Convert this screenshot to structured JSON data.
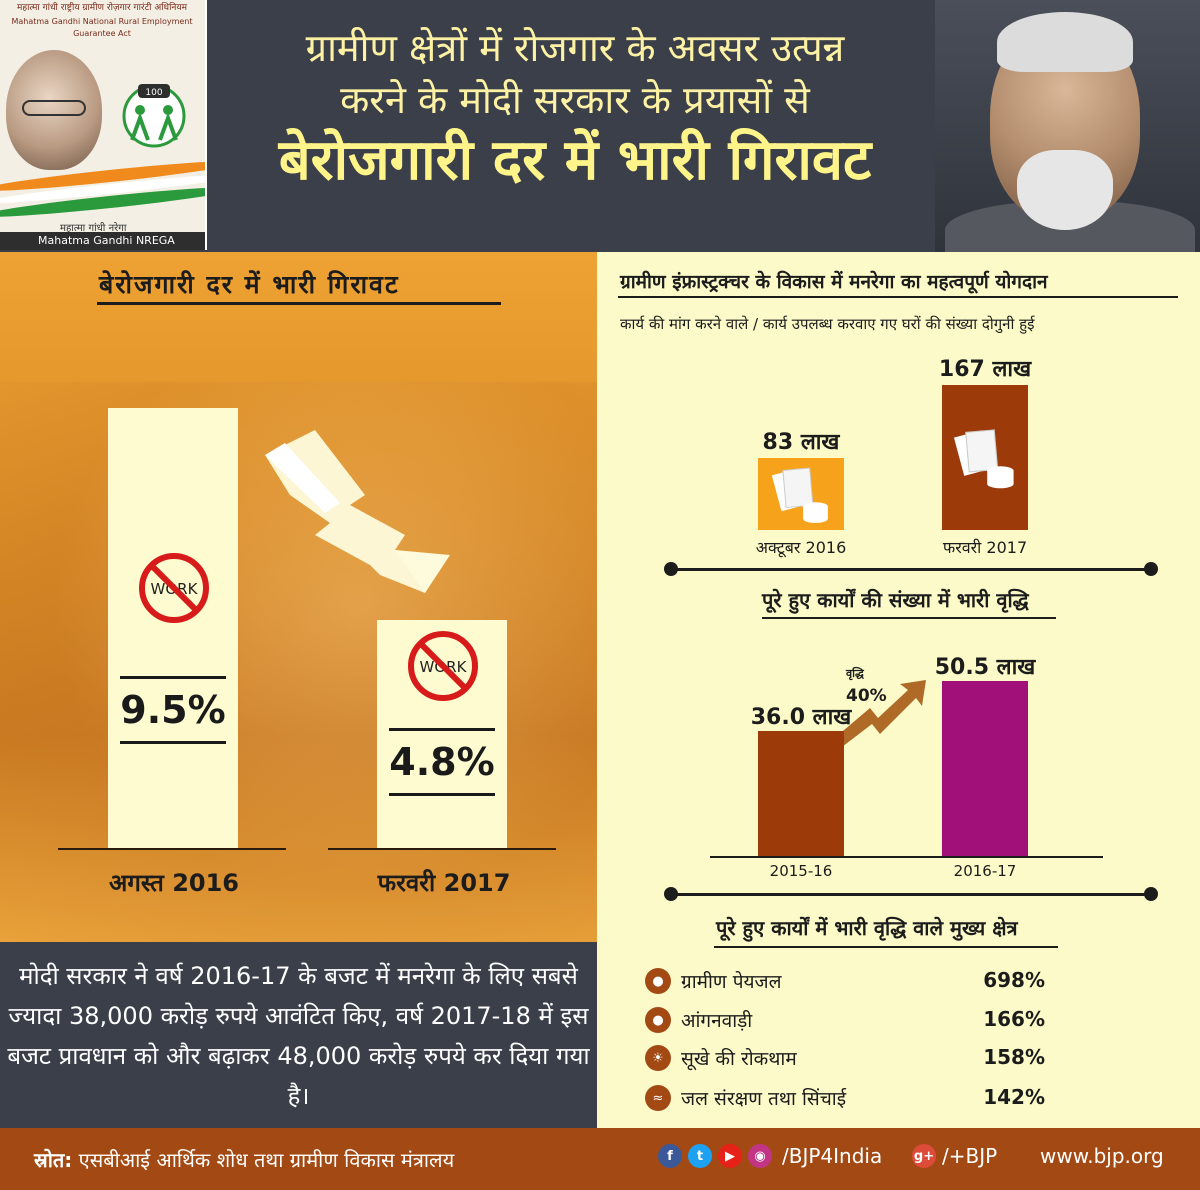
{
  "header": {
    "logo_arc_hi": "महात्मा गांधी राष्ट्रीय ग्रामीण रोज़गार गारंटी अधिनियम",
    "logo_arc_en": "Mahatma Gandhi National Rural Employment Guarantee Act",
    "logo_badge": "100",
    "logo_sub_hi": "महात्मा गांधी नरेगा",
    "logo_sub_en": "Mahatma Gandhi NREGA",
    "headline_line1": "ग्रामीण क्षेत्रों में रोजगार के अवसर उत्पन्न",
    "headline_line2": "करने के मोदी सरकार के प्रयासों से",
    "headline_line3": "बेरोजगारी दर में भारी गिरावट"
  },
  "left": {
    "title": "बेरोजगारी दर में भारी गिरावट",
    "no_work_text": "WORK",
    "note": "मोदी सरकार ने वर्ष 2016-17 के बजट में मनरेगा के लिए सबसे ज्यादा 38,000 करोड़ रुपये आवंटित किए, वर्ष 2017-18 में इस बजट प्रावधान को और बढ़ाकर 48,000 करोड़ रुपये कर दिया गया है।"
  },
  "right": {
    "sec1_title": "ग्रामीण इंफ्रास्ट्रक्चर के विकास में मनरेगा का महत्वपूर्ण योगदान",
    "sec1_subtitle": "कार्य की मांग करने वाले / कार्य उपलब्ध करवाए गए घरों की संख्या दोगुनी हुई",
    "sec2_title": "पूरे हुए कार्यों की संख्या में भारी वृद्धि",
    "growth_label": "वृद्धि",
    "growth_value": "40%",
    "sec3_title": "पूरे हुए कार्यों में भारी वृद्धि वाले मुख्य क्षेत्र"
  },
  "sectors": [
    {
      "icon": "drop-icon",
      "name": "ग्रामीण पेयजल",
      "value": "698%"
    },
    {
      "icon": "anganwadi-icon",
      "name": "आंगनवाड़ी",
      "value": "166%"
    },
    {
      "icon": "sun-icon",
      "name": "सूखे की रोकथाम",
      "value": "158%"
    },
    {
      "icon": "irrigation-icon",
      "name": "जल संरक्षण तथा सिंचाई",
      "value": "142%"
    }
  ],
  "footer": {
    "source_label": "स्रोत:",
    "source_text": "एसबीआई आर्थिक शोध तथा ग्रामीण विकास मंत्रालय",
    "handle": "/BJP4India",
    "gplus": "/+BJP",
    "website": "www.bjp.org"
  },
  "colors": {
    "accent_orange": "#eea233",
    "dark_panel": "#3a3f4a",
    "footer": "#a34a14",
    "bar_brown": "#9c3a0a",
    "bar_magenta": "#a10f79",
    "bar_light": "#f7a21b"
  },
  "chart_data": [
    {
      "type": "bar",
      "title": "बेरोजगारी दर में भारी गिरावट",
      "categories": [
        "अगस्त 2016",
        "फरवरी 2017"
      ],
      "values": [
        9.5,
        4.8
      ],
      "value_labels": [
        "9.5%",
        "4.8%"
      ],
      "unit": "%",
      "ylim": [
        0,
        10
      ]
    },
    {
      "type": "bar",
      "title": "कार्य की मांग करने वाले / कार्य उपलब्ध करवाए गए घरों की संख्या दोगुनी हुई",
      "categories": [
        "अक्टूबर 2016",
        "फरवरी 2017"
      ],
      "values": [
        83,
        167
      ],
      "value_labels": [
        "83 लाख",
        "167 लाख"
      ],
      "unit": "लाख"
    },
    {
      "type": "bar",
      "title": "पूरे हुए कार्यों की संख्या में भारी वृद्धि",
      "categories": [
        "2015-16",
        "2016-17"
      ],
      "values": [
        36.0,
        50.5
      ],
      "value_labels": [
        "36.0 लाख",
        "50.5 लाख"
      ],
      "unit": "लाख"
    }
  ]
}
